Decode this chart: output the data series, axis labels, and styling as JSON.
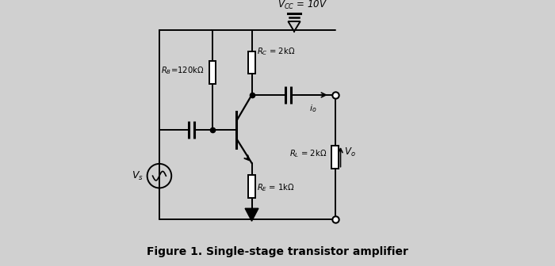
{
  "title": "Figure 1. Single-stage transistor amplifier",
  "vcc_label": "$V_{CC}$ = 10V",
  "rb_label": "$R_B$=120kΩ",
  "rc_label": "$R_C$ = 2kΩ",
  "re_label": "$R_E$ = 1kΩ",
  "rl_label": "$R_L$ = 2kΩ",
  "vs_label": "$V_s$",
  "vo_label": "$V_o$",
  "io_label": "$i_o$",
  "bg_color": "#d0d0d0",
  "line_color": "#000000",
  "title_fontsize": 10,
  "fig_width": 7.0,
  "fig_height": 3.36
}
